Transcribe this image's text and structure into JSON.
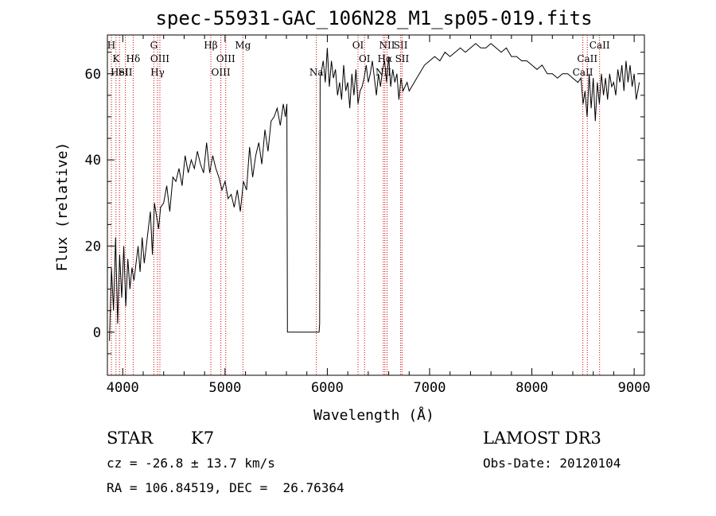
{
  "chart_data": {
    "type": "line",
    "title": "spec-55931-GAC_106N28_M1_sp05-019.fits",
    "xlabel": "Wavelength (Å)",
    "ylabel": "Flux (relative)",
    "xlim": [
      3850,
      9100
    ],
    "ylim": [
      -10,
      69
    ],
    "xticks": [
      4000,
      5000,
      6000,
      7000,
      8000,
      9000
    ],
    "xtick_labels": [
      "4000",
      "5000",
      "6000",
      "7000",
      "8000",
      "9000"
    ],
    "yticks": [
      0,
      20,
      40,
      60
    ],
    "ytick_labels": [
      "0",
      "20",
      "40",
      "60"
    ],
    "series": [
      {
        "name": "spectrum",
        "x": [
          3870,
          3890,
          3910,
          3930,
          3950,
          3970,
          3990,
          4010,
          4030,
          4050,
          4070,
          4090,
          4110,
          4130,
          4150,
          4170,
          4190,
          4210,
          4230,
          4250,
          4270,
          4290,
          4310,
          4330,
          4350,
          4370,
          4400,
          4430,
          4460,
          4490,
          4520,
          4550,
          4580,
          4610,
          4640,
          4670,
          4700,
          4730,
          4760,
          4790,
          4820,
          4850,
          4880,
          4910,
          4940,
          4970,
          5000,
          5030,
          5060,
          5090,
          5120,
          5150,
          5180,
          5210,
          5240,
          5270,
          5300,
          5330,
          5360,
          5390,
          5420,
          5450,
          5480,
          5510,
          5540,
          5570,
          5590,
          5605,
          5610,
          5650,
          5700,
          5750,
          5800,
          5850,
          5880,
          5900,
          5920,
          5925,
          5930,
          5945,
          5960,
          5980,
          6000,
          6020,
          6040,
          6060,
          6080,
          6100,
          6120,
          6140,
          6160,
          6180,
          6200,
          6220,
          6240,
          6260,
          6280,
          6300,
          6320,
          6340,
          6360,
          6380,
          6400,
          6420,
          6440,
          6460,
          6480,
          6500,
          6520,
          6540,
          6560,
          6580,
          6600,
          6620,
          6640,
          6660,
          6680,
          6700,
          6720,
          6740,
          6760,
          6780,
          6800,
          6850,
          6900,
          6950,
          7000,
          7050,
          7100,
          7150,
          7200,
          7250,
          7300,
          7350,
          7400,
          7450,
          7500,
          7550,
          7600,
          7650,
          7700,
          7750,
          7800,
          7850,
          7900,
          7950,
          8000,
          8050,
          8100,
          8150,
          8200,
          8250,
          8300,
          8350,
          8400,
          8450,
          8480,
          8500,
          8520,
          8540,
          8560,
          8580,
          8600,
          8620,
          8640,
          8660,
          8680,
          8700,
          8720,
          8740,
          8760,
          8780,
          8800,
          8820,
          8840,
          8860,
          8880,
          8900,
          8920,
          8940,
          8960,
          8980,
          9000,
          9020,
          9050
        ],
        "y": [
          -2,
          15,
          5,
          22,
          2,
          18,
          8,
          20,
          6,
          17,
          10,
          15,
          12,
          16,
          20,
          14,
          22,
          16,
          20,
          24,
          28,
          18,
          30,
          27,
          24,
          29,
          30,
          34,
          28,
          36,
          35,
          38,
          34,
          41,
          37,
          40,
          38,
          42,
          39,
          37,
          44,
          37,
          41,
          38,
          36,
          33,
          35,
          31,
          32,
          29,
          33,
          28,
          35,
          33,
          43,
          36,
          41,
          44,
          39,
          47,
          42,
          49,
          50,
          52,
          48,
          53,
          50,
          53,
          0,
          0,
          0,
          0,
          0,
          0,
          0,
          0,
          0,
          2,
          59,
          61,
          63,
          58,
          66,
          57,
          63,
          59,
          61,
          55,
          58,
          54,
          62,
          56,
          58,
          52,
          60,
          55,
          61,
          53,
          56,
          57,
          59,
          62,
          58,
          60,
          63,
          59,
          55,
          60,
          57,
          61,
          63,
          58,
          64,
          57,
          61,
          58,
          60,
          54,
          59,
          56,
          57,
          58,
          56,
          58,
          60,
          62,
          63,
          64,
          63,
          65,
          64,
          65,
          66,
          65,
          66,
          67,
          66,
          66,
          67,
          66,
          65,
          66,
          64,
          64,
          63,
          63,
          62,
          61,
          62,
          60,
          60,
          59,
          60,
          60,
          59,
          58,
          59,
          53,
          56,
          50,
          60,
          52,
          59,
          49,
          58,
          53,
          60,
          55,
          59,
          54,
          60,
          57,
          58,
          55,
          61,
          58,
          62,
          56,
          63,
          58,
          62,
          57,
          60,
          54,
          58
        ]
      }
    ],
    "annotation_lines": [
      {
        "x": 3889,
        "label": "H",
        "row": 0
      },
      {
        "x": 3934,
        "label": "K",
        "row": 1
      },
      {
        "x": 3968,
        "label": "HeI",
        "row": 2
      },
      {
        "x": 4026,
        "label": "SII",
        "row": 2
      },
      {
        "x": 4102,
        "label": "Hδ",
        "row": 1
      },
      {
        "x": 4304,
        "label": "G",
        "row": 0
      },
      {
        "x": 4340,
        "label": "Hγ",
        "row": 2
      },
      {
        "x": 4363,
        "label": "OIII",
        "row": 1
      },
      {
        "x": 4861,
        "label": "Hβ",
        "row": 0
      },
      {
        "x": 4959,
        "label": "OIII",
        "row": 2
      },
      {
        "x": 5007,
        "label": "OIII",
        "row": 1
      },
      {
        "x": 5175,
        "label": "Mg",
        "row": 0
      },
      {
        "x": 5893,
        "label": "Na",
        "row": 2
      },
      {
        "x": 6300,
        "label": "OI",
        "row": 0
      },
      {
        "x": 6364,
        "label": "OI",
        "row": 1
      },
      {
        "x": 6548,
        "label": "NII",
        "row": 2
      },
      {
        "x": 6563,
        "label": "Hα",
        "row": 1
      },
      {
        "x": 6584,
        "label": "NII",
        "row": 0
      },
      {
        "x": 6717,
        "label": "SII",
        "row": 0
      },
      {
        "x": 6731,
        "label": "SII",
        "row": 1
      },
      {
        "x": 8498,
        "label": "CaII",
        "row": 2
      },
      {
        "x": 8542,
        "label": "CaII",
        "row": 1
      },
      {
        "x": 8662,
        "label": "CaII",
        "row": 0
      }
    ],
    "colors": {
      "spectrum": "#000000",
      "annotation": "#cc0000"
    }
  },
  "footer": {
    "object_class": "STAR",
    "subclass": "K7",
    "survey": "LAMOST DR3",
    "cz": "cz = -26.8 ± 13.7 km/s",
    "obs_date": "Obs-Date: 20120104",
    "coords": "RA = 106.84519, DEC =  26.76364"
  }
}
